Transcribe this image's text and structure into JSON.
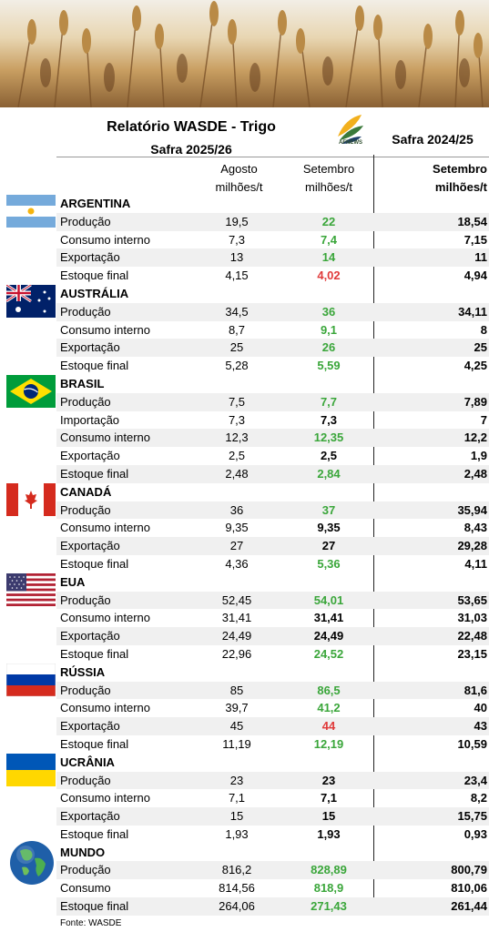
{
  "header": {
    "title": "Relatório WASDE - Trigo",
    "subtitle_left": "Safra 2025/26",
    "subtitle_right": "Safra 2024/25",
    "logo_text": "AFNEWS",
    "col1_top": "Agosto",
    "col1_unit": "milhões/t",
    "col2_top": "Setembro",
    "col2_unit": "milhões/t",
    "col3_top": "Setembro",
    "col3_unit": "milhões/t"
  },
  "colors": {
    "up": "#3aa63a",
    "down": "#e03a3a",
    "same": "#000000"
  },
  "sections": [
    {
      "country": "ARGENTINA",
      "flag": "argentina-flag",
      "rows": [
        {
          "label": "Produção",
          "aug": "19,5",
          "sep": "22",
          "trend": "up",
          "prev": "18,54"
        },
        {
          "label": "Consumo interno",
          "aug": "7,3",
          "sep": "7,4",
          "trend": "up",
          "prev": "7,15"
        },
        {
          "label": "Exportação",
          "aug": "13",
          "sep": "14",
          "trend": "up",
          "prev": "11"
        },
        {
          "label": "Estoque final",
          "aug": "4,15",
          "sep": "4,02",
          "trend": "down",
          "prev": "4,94"
        }
      ]
    },
    {
      "country": "AUSTRÁLIA",
      "flag": "australia-flag",
      "rows": [
        {
          "label": "Produção",
          "aug": "34,5",
          "sep": "36",
          "trend": "up",
          "prev": "34,11"
        },
        {
          "label": "Consumo interno",
          "aug": "8,7",
          "sep": "9,1",
          "trend": "up",
          "prev": "8"
        },
        {
          "label": "Exportação",
          "aug": "25",
          "sep": "26",
          "trend": "up",
          "prev": "25"
        },
        {
          "label": "Estoque final",
          "aug": "5,28",
          "sep": "5,59",
          "trend": "up",
          "prev": "4,25"
        }
      ]
    },
    {
      "country": "BRASIL",
      "flag": "brazil-flag",
      "rows": [
        {
          "label": "Produção",
          "aug": "7,5",
          "sep": "7,7",
          "trend": "up",
          "prev": "7,89"
        },
        {
          "label": "Importação",
          "aug": "7,3",
          "sep": "7,3",
          "trend": "same",
          "prev": "7"
        },
        {
          "label": "Consumo interno",
          "aug": "12,3",
          "sep": "12,35",
          "trend": "up",
          "prev": "12,2"
        },
        {
          "label": "Exportação",
          "aug": "2,5",
          "sep": "2,5",
          "trend": "same",
          "prev": "1,9"
        },
        {
          "label": "Estoque final",
          "aug": "2,48",
          "sep": "2,84",
          "trend": "up",
          "prev": "2,48"
        }
      ]
    },
    {
      "country": "CANADÁ",
      "flag": "canada-flag",
      "rows": [
        {
          "label": "Produção",
          "aug": "36",
          "sep": "37",
          "trend": "up",
          "prev": "35,94"
        },
        {
          "label": "Consumo interno",
          "aug": "9,35",
          "sep": "9,35",
          "trend": "same",
          "prev": "8,43"
        },
        {
          "label": "Exportação",
          "aug": "27",
          "sep": "27",
          "trend": "same",
          "prev": "29,28"
        },
        {
          "label": "Estoque final",
          "aug": "4,36",
          "sep": "5,36",
          "trend": "up",
          "prev": "4,11"
        }
      ]
    },
    {
      "country": "EUA",
      "flag": "usa-flag",
      "rows": [
        {
          "label": "Produção",
          "aug": "52,45",
          "sep": "54,01",
          "trend": "up",
          "prev": "53,65"
        },
        {
          "label": "Consumo interno",
          "aug": "31,41",
          "sep": "31,41",
          "trend": "same",
          "prev": "31,03"
        },
        {
          "label": "Exportação",
          "aug": "24,49",
          "sep": "24,49",
          "trend": "same",
          "prev": "22,48"
        },
        {
          "label": "Estoque final",
          "aug": "22,96",
          "sep": "24,52",
          "trend": "up",
          "prev": "23,15"
        }
      ]
    },
    {
      "country": "RÚSSIA",
      "flag": "russia-flag",
      "rows": [
        {
          "label": "Produção",
          "aug": "85",
          "sep": "86,5",
          "trend": "up",
          "prev": "81,6"
        },
        {
          "label": "Consumo interno",
          "aug": "39,7",
          "sep": "41,2",
          "trend": "up",
          "prev": "40"
        },
        {
          "label": "Exportação",
          "aug": "45",
          "sep": "44",
          "trend": "down",
          "prev": "43"
        },
        {
          "label": "Estoque final",
          "aug": "11,19",
          "sep": "12,19",
          "trend": "up",
          "prev": "10,59"
        }
      ]
    },
    {
      "country": "UCRÂNIA",
      "flag": "ukraine-flag",
      "rows": [
        {
          "label": "Produção",
          "aug": "23",
          "sep": "23",
          "trend": "same",
          "prev": "23,4"
        },
        {
          "label": "Consumo interno",
          "aug": "7,1",
          "sep": "7,1",
          "trend": "same",
          "prev": "8,2"
        },
        {
          "label": "Exportação",
          "aug": "15",
          "sep": "15",
          "trend": "same",
          "prev": "15,75"
        },
        {
          "label": "Estoque final",
          "aug": "1,93",
          "sep": "1,93",
          "trend": "same",
          "prev": "0,93"
        }
      ]
    },
    {
      "country": "MUNDO",
      "flag": "globe-icon",
      "rows": [
        {
          "label": "Produção",
          "aug": "816,2",
          "sep": "828,89",
          "trend": "up",
          "prev": "800,79"
        },
        {
          "label": "Consumo",
          "aug": "814,56",
          "sep": "818,9",
          "trend": "up",
          "prev": "810,06"
        },
        {
          "label": "Estoque final",
          "aug": "264,06",
          "sep": "271,43",
          "trend": "up",
          "prev": "261,44"
        }
      ]
    }
  ],
  "footer": {
    "source": "Fonte: WASDE"
  }
}
